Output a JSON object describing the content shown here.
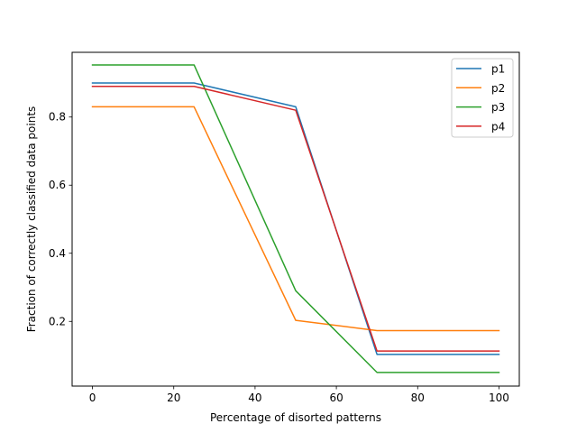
{
  "chart_data": {
    "type": "line",
    "title": "",
    "xlabel": "Percentage of disorted patterns",
    "ylabel": "Fraction of correctly classified data points",
    "xlim": [
      -5,
      105
    ],
    "ylim": [
      0.01,
      0.99
    ],
    "xticks": [
      0,
      20,
      40,
      60,
      80,
      100
    ],
    "yticks": [
      0.2,
      0.4,
      0.6,
      0.8
    ],
    "xtick_labels": [
      "0",
      "20",
      "40",
      "60",
      "80",
      "100"
    ],
    "ytick_labels": [
      "0.2",
      "0.4",
      "0.6",
      "0.8"
    ],
    "grid": false,
    "legend_position": "top-right",
    "x": [
      0,
      25,
      50,
      70,
      100
    ],
    "series": [
      {
        "name": "p1",
        "color": "#1f77b4",
        "values": [
          0.9,
          0.9,
          0.83,
          0.103,
          0.103
        ]
      },
      {
        "name": "p2",
        "color": "#ff7f0e",
        "values": [
          0.83,
          0.83,
          0.203,
          0.173,
          0.173
        ]
      },
      {
        "name": "p3",
        "color": "#2ca02c",
        "values": [
          0.953,
          0.953,
          0.29,
          0.05,
          0.05
        ]
      },
      {
        "name": "p4",
        "color": "#d62728",
        "values": [
          0.89,
          0.89,
          0.82,
          0.113,
          0.113
        ]
      }
    ]
  }
}
